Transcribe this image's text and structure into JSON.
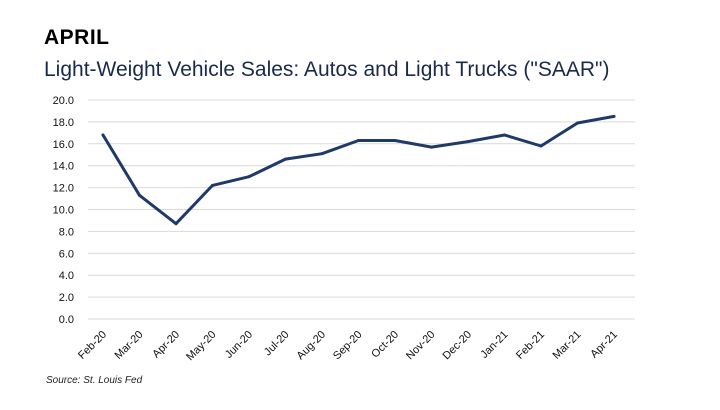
{
  "header": {
    "label": "APRIL"
  },
  "chart_data": {
    "type": "line",
    "title": "Light-Weight Vehicle Sales: Autos and Light Trucks (\"SAAR\")",
    "categories": [
      "Feb-20",
      "Mar-20",
      "Apr-20",
      "May-20",
      "Jun-20",
      "Jul-20",
      "Aug-20",
      "Sep-20",
      "Oct-20",
      "Nov-20",
      "Dec-20",
      "Jan-21",
      "Feb-21",
      "Mar-21",
      "Apr-21"
    ],
    "series": [
      {
        "values": [
          16.8,
          11.3,
          8.7,
          12.2,
          13.0,
          14.6,
          15.1,
          16.3,
          16.3,
          15.7,
          16.2,
          16.8,
          15.8,
          17.9,
          18.5
        ]
      }
    ],
    "yticks": [
      "0.0",
      "2.0",
      "4.0",
      "6.0",
      "8.0",
      "10.0",
      "12.0",
      "14.0",
      "16.0",
      "18.0",
      "20.0"
    ],
    "ylim": [
      0,
      20
    ],
    "grid": true,
    "line_color": "#1f3a68"
  },
  "footer": {
    "source": "Source: St. Louis Fed"
  }
}
